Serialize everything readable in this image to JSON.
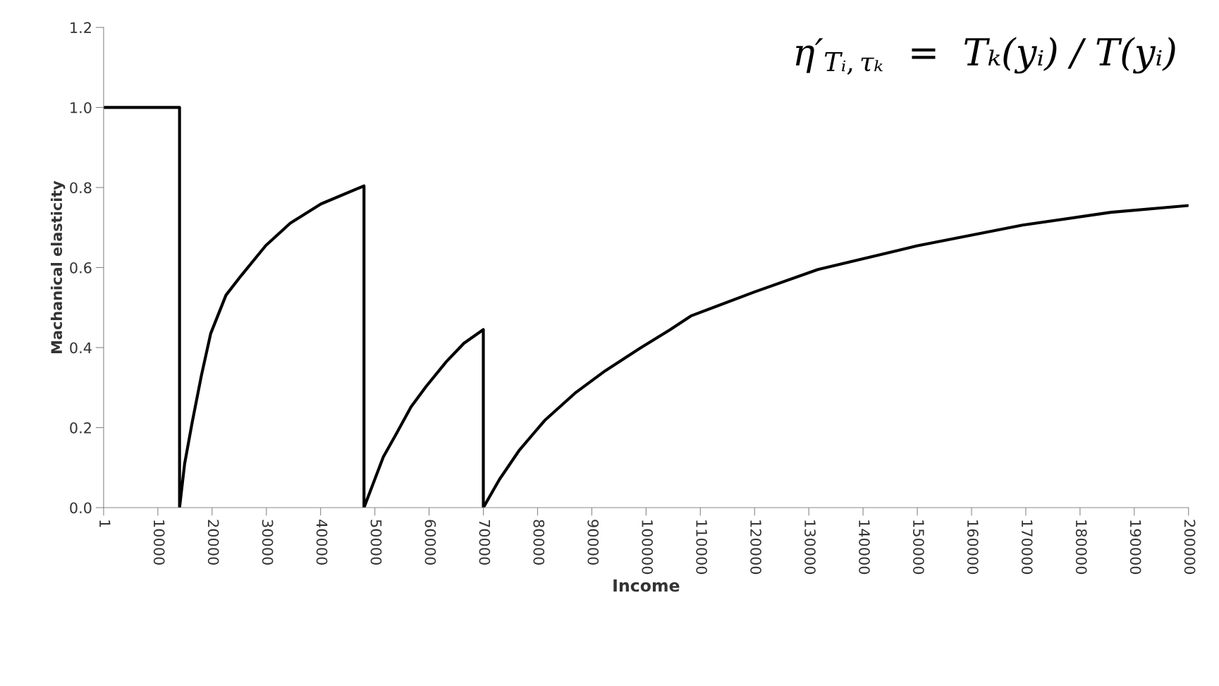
{
  "chart_data": {
    "type": "line",
    "xlabel": "Income",
    "ylabel": "Machanical elasticity",
    "annotations": [
      "η′$_{Tᵢ,τₖ}$  =  Tₖ(yᵢ) / T(yᵢ)"
    ],
    "series": [
      {
        "color": "#000000",
        "x": [
          1,
          14000,
          14000,
          14940,
          16340,
          18040,
          19740,
          22560,
          25370,
          29900,
          34420,
          40070,
          48000,
          48000,
          51570,
          53890,
          56680,
          59470,
          63190,
          66440,
          70000,
          70000,
          72950,
          76660,
          81320,
          86890,
          92470,
          98970,
          104360,
          108260,
          119970,
          131680,
          149900,
          169420,
          185680,
          200000
        ],
        "values": [
          1.0,
          1.0,
          0.0,
          0.11,
          0.214,
          0.331,
          0.435,
          0.531,
          0.58,
          0.655,
          0.711,
          0.759,
          0.804,
          0.0,
          0.127,
          0.183,
          0.252,
          0.303,
          0.365,
          0.411,
          0.445,
          0.0,
          0.07,
          0.144,
          0.218,
          0.286,
          0.342,
          0.399,
          0.444,
          0.479,
          0.539,
          0.595,
          0.654,
          0.706,
          0.738,
          0.755
        ]
      }
    ],
    "xlim": [
      1,
      200000
    ],
    "xticks": [
      1,
      10000,
      20000,
      30000,
      40000,
      50000,
      60000,
      70000,
      80000,
      90000,
      100000,
      110000,
      120000,
      130000,
      140000,
      150000,
      160000,
      170000,
      180000,
      190000,
      200000
    ],
    "ylim": [
      0,
      1.2
    ],
    "yticks": [
      {
        "value": 0,
        "label": "0.0"
      },
      {
        "value": 0.2,
        "label": "0.2"
      },
      {
        "value": 0.4,
        "label": "0.4"
      },
      {
        "value": 0.6,
        "label": "0.6"
      },
      {
        "value": 0.8,
        "label": "0.8"
      },
      {
        "value": 1.0,
        "label": "1.0"
      },
      {
        "value": 1.2,
        "label": "1.2"
      }
    ],
    "grid": false,
    "legend": false,
    "marker": "none",
    "line_style": "solid"
  }
}
